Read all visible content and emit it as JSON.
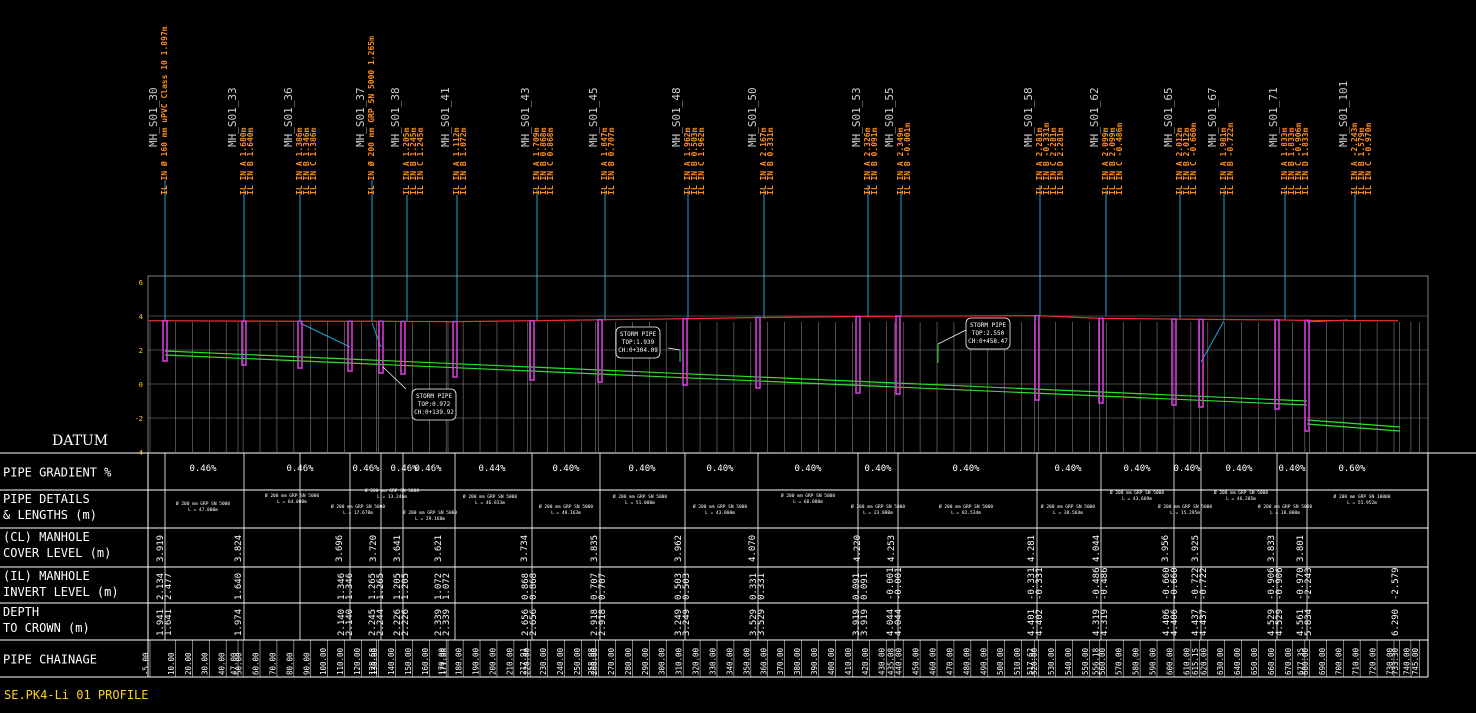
{
  "datum_label": "DATUM",
  "footer_title": "SE.PK4-Li 01 PROFILE",
  "y_axis_ticks": [
    "6",
    "4",
    "2",
    "0",
    "-2",
    "-4"
  ],
  "row_headers": [
    [
      "PIPE GRADIENT %"
    ],
    [
      "PIPE DETAILS",
      "& LENGTHS (m)"
    ],
    [
      "(CL) MANHOLE",
      "COVER LEVEL (m)"
    ],
    [
      "(IL) MANHOLE",
      "INVERT LEVEL (m)"
    ],
    [
      "DEPTH",
      "TO CROWN (m)"
    ],
    [
      "PIPE CHAINAGE"
    ]
  ],
  "manholes": [
    {
      "name": "MH_S01_30",
      "lines": [
        "IL IN Ø 160 mm uPVC Class 10 1.897m"
      ]
    },
    {
      "name": "MH_S01_33",
      "lines": [
        "IL IN A 1.680m",
        "IL IN B 1.640m"
      ]
    },
    {
      "name": "MH_S01_36",
      "lines": [
        "IL IN A 1.386m",
        "IL IN B 1.346m",
        "IL IN C 1.386m"
      ]
    },
    {
      "name": "MH_S01_37",
      "lines": [
        "IL IN Ø 200 mm GRP SN 5000 1.265m"
      ]
    },
    {
      "name": "MH_S01_38",
      "lines": [
        "IL IN A 1.205m",
        "IL IN B 1.245m",
        "IL IN C 1.245m"
      ]
    },
    {
      "name": "MH_S01_41",
      "lines": [
        "IL IN A 1.112m",
        "IL IN B 1.072m"
      ]
    },
    {
      "name": "MH_S01_43",
      "lines": [
        "IL IN A 1.709m",
        "IL IN B 0.868m",
        "IL IN C 0.868m"
      ]
    },
    {
      "name": "MH_S01_45",
      "lines": [
        "IL IN A 1.847m",
        "IL IN B 0.707m"
      ]
    },
    {
      "name": "MH_S01_48",
      "lines": [
        "IL IN A 1.962m",
        "IL IN B 0.503m",
        "IL IN C 1.962m"
      ]
    },
    {
      "name": "MH_S01_50",
      "lines": [
        "IL IN A 2.167m",
        "IL IN B 0.331m"
      ]
    },
    {
      "name": "MH_S01_53",
      "lines": [
        "IL IN A 2.326m",
        "IL IN B 0.091m"
      ]
    },
    {
      "name": "MH_S01_55",
      "lines": [
        "IL IN A 2.349m",
        "IL IN B -0.001m"
      ]
    },
    {
      "name": "MH_S01_58",
      "lines": [
        "IL IN A 2.281m",
        "IL IN B -0.331m",
        "IL IN C 2.281m",
        "IL IN D 2.281m"
      ]
    },
    {
      "name": "MH_S01_62",
      "lines": [
        "IL IN A 2.099m",
        "IL IN B 2.099m",
        "IL IN C -0.486m"
      ]
    },
    {
      "name": "MH_S01_65",
      "lines": [
        "IL IN A 2.012m",
        "IL IN B 2.012m",
        "IL IN C -0.660m"
      ]
    },
    {
      "name": "MH_S01_67",
      "lines": [
        "IL IN A 1.981m",
        "IL IN B -0.722m"
      ]
    },
    {
      "name": "MH_S01_71",
      "lines": [
        "IL IN A 1.833m",
        "IL IN B 1.833m",
        "IL IN C -0.906m",
        "IL IN D 1.833m"
      ]
    },
    {
      "name": "MH_S01_101",
      "lines": [
        "IL IN A -2.243m",
        "IL IN B 1.579m",
        "IL IN C -0.970m"
      ]
    }
  ],
  "storm_callouts": [
    {
      "lines": [
        "STORM PIPE",
        "TOP:0.972",
        "CH:0+139.92"
      ]
    },
    {
      "lines": [
        "STORM PIPE",
        "TOP:1.939",
        "CH:0+304.09"
      ]
    },
    {
      "lines": [
        "STORM PIPE",
        "TOP:2.550",
        "CH:0+458.47"
      ]
    }
  ],
  "gradients": [
    "0.46%",
    "0.46%",
    "0.46%",
    "0.46%",
    "0.46%",
    "0.44%",
    "0.40%",
    "0.40%",
    "0.40%",
    "0.40%",
    "0.40%",
    "0.40%",
    "0.40%",
    "0.40%",
    "0.40%",
    "0.40%",
    "0.40%",
    "0.60%"
  ],
  "pipe_details": [
    [
      "Ø 200 mm GRP SN 5000",
      "L = 47.000m"
    ],
    [
      "Ø 200 mm GRP SN 5000",
      "L = 64.000m"
    ],
    [
      "Ø 200 mm GRP SN 5000",
      "L = 13.246m"
    ],
    [
      "Ø 200 mm GRP SN 5000",
      "L = 17.678m"
    ],
    [
      "Ø 200 mm GRP SN 5000",
      "L = 29.168m"
    ],
    [
      "Ø 200 mm GRP SN 5000",
      "L = 46.833m"
    ],
    [
      "Ø 200 mm GRP SN 5000",
      "L = 48.163m"
    ],
    [
      "Ø 200 mm GRP SN 5000",
      "L = 51.000m"
    ],
    [
      "Ø 200 mm GRP SN 5000",
      "L = 43.000m"
    ],
    [
      "Ø 200 mm GRP SN 5000",
      "L = 60.000m"
    ],
    [
      "Ø 200 mm GRP SN 5000",
      "L = 23.000m"
    ],
    [
      "Ø 200 mm GRP SN 5000",
      "L = 82.534m"
    ],
    [
      "Ø 200 mm GRP SN 5000",
      "L = 38.564m"
    ],
    [
      "Ø 200 mm GRP SN 5000",
      "L = 43.669m"
    ],
    [
      "Ø 200 mm GRP SN 5000",
      "L = 15.295m"
    ],
    [
      "Ø 200 mm GRP SN 5000",
      "L = 46.205m"
    ],
    [
      "Ø 200 mm GRP SN 5000",
      "L = 18.000m"
    ],
    [
      "Ø 200 mm GRP SN 10000",
      "L = 55.952m"
    ]
  ],
  "cover_levels": [
    "3.919",
    "3.824",
    "3.696",
    "3.720",
    "3.641",
    "3.621",
    "3.734",
    "3.835",
    "3.962",
    "4.070",
    "4.220",
    "4.253",
    "4.281",
    "4.044",
    "3.956",
    "3.925",
    "3.833",
    "3.801"
  ],
  "invert_levels": [
    [
      "2.134",
      "2.477"
    ],
    [
      "1.640"
    ],
    [
      "1.346",
      "1.346"
    ],
    [
      "1.265",
      "1.265"
    ],
    [
      "1.205",
      "1.205"
    ],
    [
      "1.072",
      "1.072"
    ],
    [
      "0.868",
      "0.868"
    ],
    [
      "0.707",
      "0.707"
    ],
    [
      "0.503",
      "0.503"
    ],
    [
      "0.331",
      "0.331"
    ],
    [
      "0.091",
      "0.091"
    ],
    [
      "-0.001",
      "-0.001"
    ],
    [
      "-0.331",
      "-0.331"
    ],
    [
      "-0.486",
      "-0.486"
    ],
    [
      "-0.660",
      "-0.660"
    ],
    [
      "-0.722",
      "-0.722"
    ],
    [
      "-0.906",
      "-0.906"
    ],
    [
      "-0.970",
      "-2.243"
    ],
    [
      "-2.579"
    ]
  ],
  "depth_to_crown": [
    [
      "1.941",
      "1.641"
    ],
    [
      "1.974"
    ],
    [
      "2.140",
      "2.140"
    ],
    [
      "2.245",
      "2.244"
    ],
    [
      "2.226",
      "2.226"
    ],
    [
      "2.339",
      "2.339"
    ],
    [
      "2.656",
      "2.656"
    ],
    [
      "2.918",
      "2.918"
    ],
    [
      "3.249",
      "3.249"
    ],
    [
      "3.529",
      "3.529"
    ],
    [
      "3.919",
      "3.919"
    ],
    [
      "4.044",
      "4.044"
    ],
    [
      "4.401",
      "4.402"
    ],
    [
      "4.319",
      "4.319"
    ],
    [
      "4.406",
      "4.406"
    ],
    [
      "4.437",
      "4.437"
    ],
    [
      "4.529",
      "4.529"
    ],
    [
      "4.561",
      "5.834"
    ],
    [
      "6.290"
    ]
  ],
  "chainages": [
    "-5.00",
    "10.00",
    "20.00",
    "30.00",
    "40.00",
    "47.00",
    "50.00",
    "60.00",
    "70.00",
    "80.00",
    "90.00",
    "100.00",
    "110.00",
    "120.00",
    "128.68",
    "130.00",
    "140.00",
    "150.00",
    "160.00",
    "170.00",
    "171.08",
    "180.00",
    "190.00",
    "200.00",
    "210.00",
    "217.91",
    "220.00",
    "230.00",
    "240.00",
    "250.00",
    "258.08",
    "260.00",
    "270.00",
    "280.00",
    "290.00",
    "300.00",
    "310.00",
    "320.00",
    "330.00",
    "340.00",
    "350.00",
    "360.00",
    "370.00",
    "380.00",
    "390.00",
    "400.00",
    "410.00",
    "420.00",
    "430.00",
    "435.08",
    "440.00",
    "450.00",
    "460.00",
    "470.00",
    "480.00",
    "490.00",
    "500.00",
    "510.00",
    "517.62",
    "520.00",
    "530.00",
    "540.00",
    "550.00",
    "556.18",
    "560.00",
    "570.00",
    "580.00",
    "590.00",
    "600.00",
    "610.00",
    "615.15",
    "620.00",
    "630.00",
    "640.00",
    "650.00",
    "660.00",
    "670.00",
    "677.35",
    "680.00",
    "690.00",
    "700.00",
    "710.00",
    "720.00",
    "730.00",
    "733.30",
    "740.00",
    "745.00"
  ],
  "colors": {
    "background": "#000000",
    "label": "#ff8c1a",
    "manhole_name": "#cfcfcf",
    "leader": "#1aa3d9",
    "ground": "#e83030",
    "pipe": "#2ee02e",
    "manhole": "#d23cd2",
    "grid": "#9a9a9a",
    "table": "#ffffff",
    "footer": "#ffd21a"
  }
}
